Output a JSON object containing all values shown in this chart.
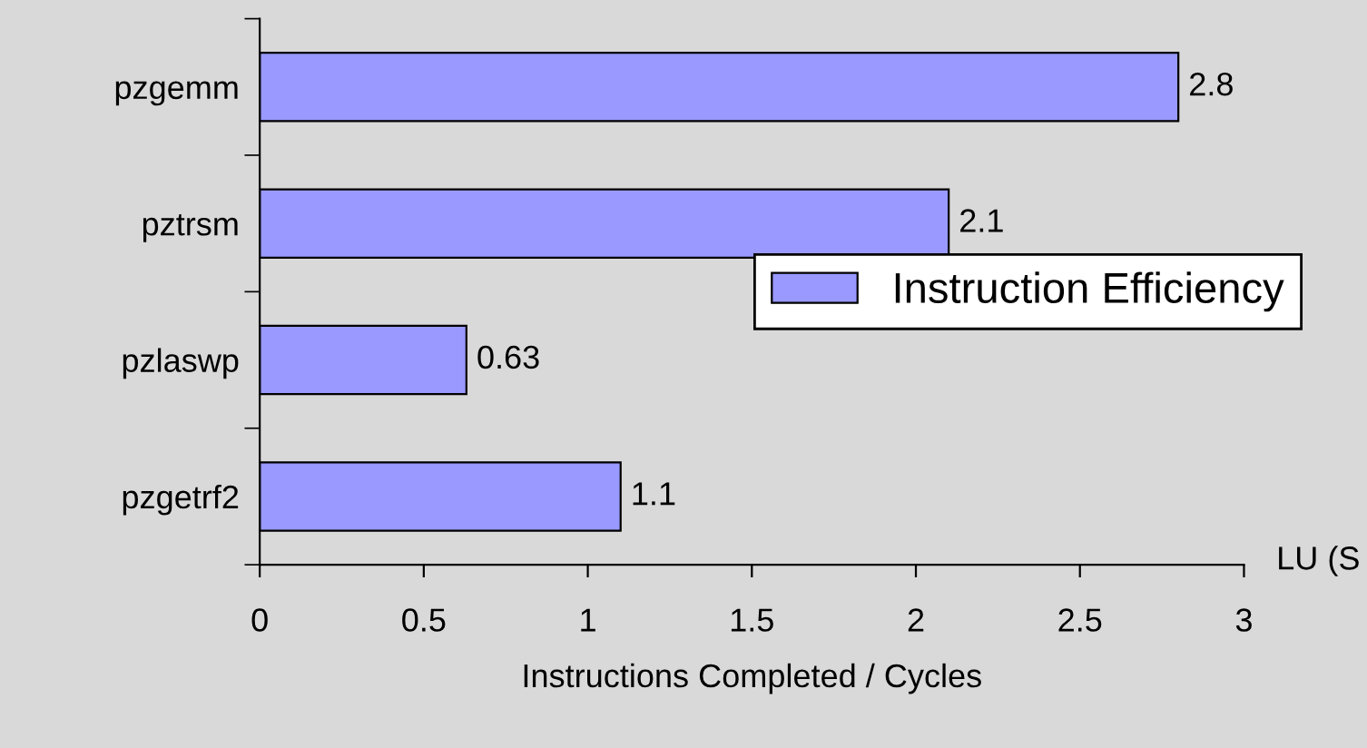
{
  "chart_data": {
    "type": "bar",
    "orientation": "horizontal",
    "categories": [
      "pzgemm",
      "pztrsm",
      "pzlaswp",
      "pzgetrf2"
    ],
    "series": [
      {
        "name": "Instruction Efficiency",
        "color": "#9999ff",
        "values": [
          2.8,
          2.1,
          0.63,
          1.1
        ]
      }
    ],
    "xlabel": "Instructions Completed / Cycles",
    "xlim": [
      0,
      3
    ],
    "xticks": [
      0,
      0.5,
      1,
      1.5,
      2,
      2.5,
      3
    ],
    "data_labels": true,
    "legend": "right",
    "grid": false,
    "annotations": [
      "LU (S"
    ]
  }
}
